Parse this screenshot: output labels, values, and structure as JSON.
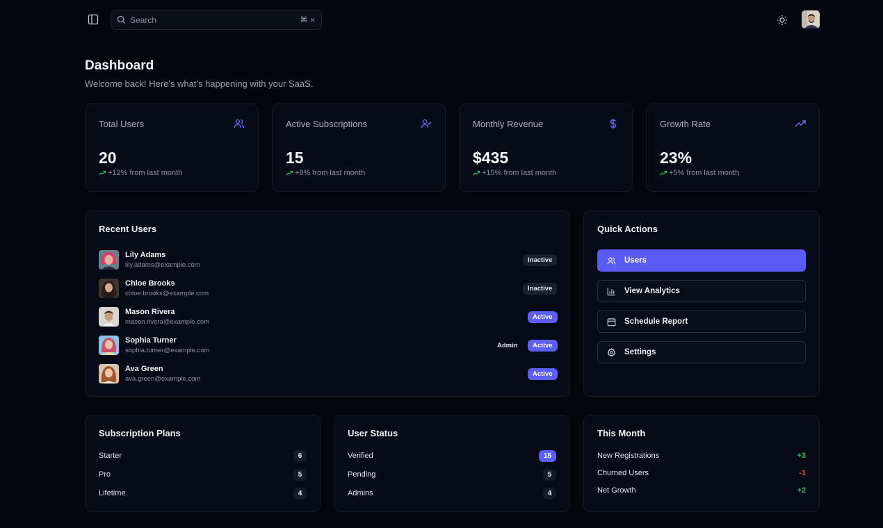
{
  "topbar": {
    "search_placeholder": "Search",
    "shortcut_key": "⌘",
    "shortcut_letter": "K"
  },
  "header": {
    "title": "Dashboard",
    "subtitle": "Welcome back! Here's what's happening with your SaaS."
  },
  "stats": [
    {
      "label": "Total Users",
      "value": "20",
      "change": "+12% from last month",
      "icon": "users-icon"
    },
    {
      "label": "Active Subscriptions",
      "value": "15",
      "change": "+8% from last month",
      "icon": "user-check-icon"
    },
    {
      "label": "Monthly Revenue",
      "value": "$435",
      "change": "+15% from last month",
      "icon": "dollar-icon"
    },
    {
      "label": "Growth Rate",
      "value": "23%",
      "change": "+5% from last month",
      "icon": "trending-up-icon"
    }
  ],
  "recent_users": {
    "title": "Recent Users",
    "items": [
      {
        "name": "Lily Adams",
        "email": "lily.adams@example.com",
        "status": "Inactive",
        "role": ""
      },
      {
        "name": "Chloe Brooks",
        "email": "chloe.brooks@example.com",
        "status": "Inactive",
        "role": ""
      },
      {
        "name": "Mason Rivera",
        "email": "mason.rivera@example.com",
        "status": "Active",
        "role": ""
      },
      {
        "name": "Sophia Turner",
        "email": "sophia.turner@example.com",
        "status": "Active",
        "role": "Admin"
      },
      {
        "name": "Ava Green",
        "email": "ava.green@example.com",
        "status": "Active",
        "role": ""
      }
    ]
  },
  "quick_actions": {
    "title": "Quick Actions",
    "items": [
      {
        "label": "Users",
        "icon": "users-icon"
      },
      {
        "label": "View Analytics",
        "icon": "bar-chart-icon"
      },
      {
        "label": "Schedule Report",
        "icon": "calendar-icon"
      },
      {
        "label": "Settings",
        "icon": "gear-icon"
      }
    ]
  },
  "subscription_plans": {
    "title": "Subscription Plans",
    "items": [
      {
        "label": "Starter",
        "count": "6"
      },
      {
        "label": "Pro",
        "count": "5"
      },
      {
        "label": "Lifetime",
        "count": "4"
      }
    ]
  },
  "user_status": {
    "title": "User Status",
    "items": [
      {
        "label": "Verified",
        "count": "15"
      },
      {
        "label": "Pending",
        "count": "5"
      },
      {
        "label": "Admins",
        "count": "4"
      }
    ]
  },
  "this_month": {
    "title": "This Month",
    "items": [
      {
        "label": "New Registrations",
        "value": "+3"
      },
      {
        "label": "Churned Users",
        "value": "-1"
      },
      {
        "label": "Net Growth",
        "value": "+2"
      }
    ]
  },
  "colors": {
    "accent": "#5b5ff5",
    "positive": "#2fc25b",
    "negative": "#e5484d",
    "background": "#03060f",
    "card": "#070b17"
  }
}
